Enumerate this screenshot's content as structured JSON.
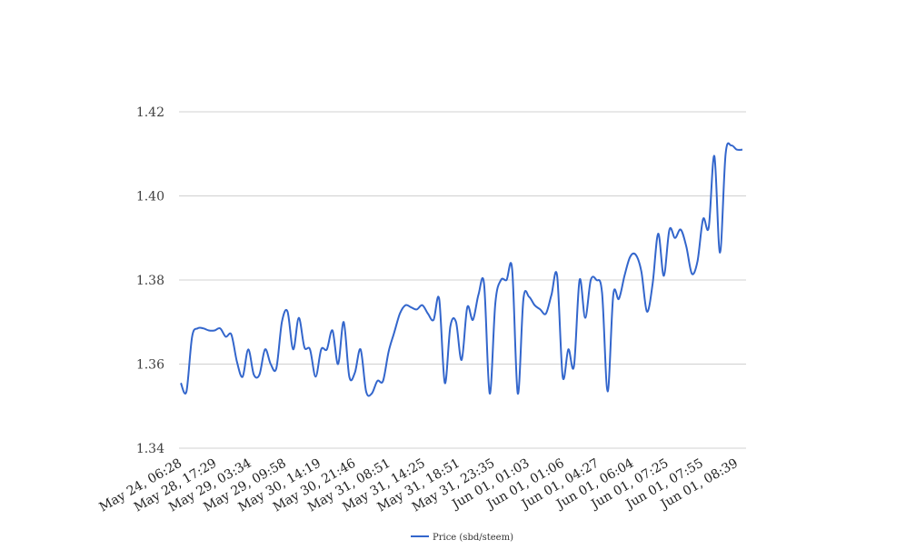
{
  "chart_data": {
    "type": "line",
    "title": "",
    "xlabel": "",
    "ylabel": "",
    "ylim": [
      1.34,
      1.42
    ],
    "yticks": [
      "1.34",
      "1.36",
      "1.38",
      "1.40",
      "1.42"
    ],
    "grid": true,
    "legend_position": "bottom-center",
    "x_tick_labels": [
      "May 24, 06:28",
      "May 28, 17:29",
      "May 29, 03:34",
      "May 29, 09:58",
      "May 30, 14:19",
      "May 30, 21:46",
      "May 31, 08:51",
      "May 31, 14:25",
      "May 31, 18:51",
      "May 31, 23:35",
      "Jun 01, 01:03",
      "Jun 01, 01:06",
      "Jun 01, 04:27",
      "Jun 01, 06:04",
      "Jun 01, 07:25",
      "Jun 01, 07:55",
      "Jun 01, 08:39"
    ],
    "series": [
      {
        "name": "Price (sbd/steem)",
        "color": "#3366cc",
        "values": [
          1.3555,
          1.3535,
          1.3665,
          1.3685,
          1.3685,
          1.368,
          1.368,
          1.3685,
          1.3665,
          1.367,
          1.3605,
          1.357,
          1.3635,
          1.3575,
          1.3575,
          1.3635,
          1.36,
          1.359,
          1.37,
          1.3725,
          1.3635,
          1.371,
          1.364,
          1.3635,
          1.357,
          1.3635,
          1.3635,
          1.368,
          1.36,
          1.37,
          1.357,
          1.358,
          1.3635,
          1.3535,
          1.353,
          1.356,
          1.356,
          1.363,
          1.3675,
          1.372,
          1.374,
          1.3735,
          1.373,
          1.374,
          1.372,
          1.3705,
          1.3755,
          1.3555,
          1.369,
          1.37,
          1.361,
          1.3735,
          1.3705,
          1.3765,
          1.379,
          1.353,
          1.3745,
          1.38,
          1.38,
          1.3825,
          1.353,
          1.3755,
          1.376,
          1.374,
          1.373,
          1.372,
          1.3765,
          1.381,
          1.357,
          1.3635,
          1.3595,
          1.38,
          1.371,
          1.38,
          1.38,
          1.377,
          1.3535,
          1.3765,
          1.3755,
          1.381,
          1.3855,
          1.386,
          1.382,
          1.3725,
          1.379,
          1.391,
          1.381,
          1.392,
          1.39,
          1.392,
          1.388,
          1.3815,
          1.3845,
          1.3945,
          1.3925,
          1.4095,
          1.3865,
          1.41,
          1.412,
          1.411,
          1.411
        ]
      }
    ]
  }
}
